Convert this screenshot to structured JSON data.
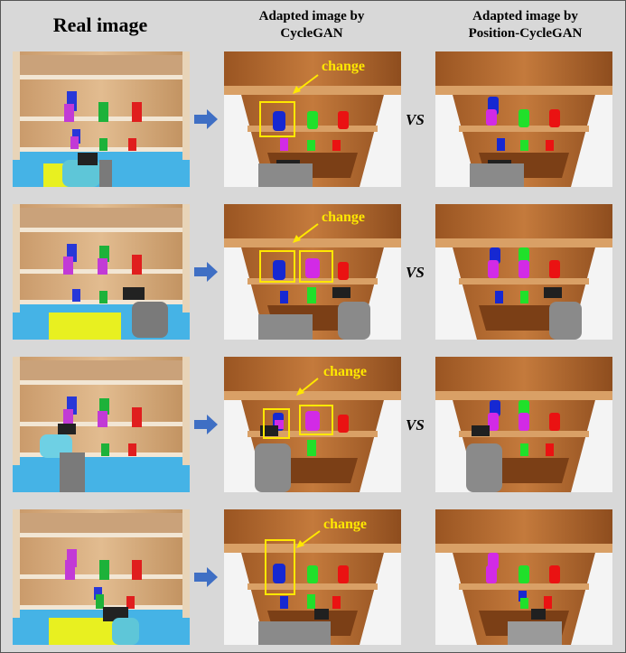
{
  "headers": {
    "real": "Real image",
    "cyclegan_line1": "Adapted image by",
    "cyclegan_line2": "CycleGAN",
    "poscyclegan_line1": "Adapted image by",
    "poscyclegan_line2": "Position-CycleGAN"
  },
  "rows": [
    {
      "change_label": "change",
      "vs_label": "VS"
    },
    {
      "change_label": "change",
      "vs_label": "VS"
    },
    {
      "change_label": "change",
      "vs_label": "VS"
    },
    {
      "change_label": "change",
      "vs_label": ""
    }
  ],
  "colors": {
    "highlight": "#ffe800",
    "arrow": "#3f6fc4",
    "real_floor": "#45b3e6",
    "sim_floor": "#f4f4f4",
    "wood_light": "#d8a56a",
    "wood_dark": "#8a4a1c"
  },
  "icons": [
    "right-arrow-icon"
  ]
}
